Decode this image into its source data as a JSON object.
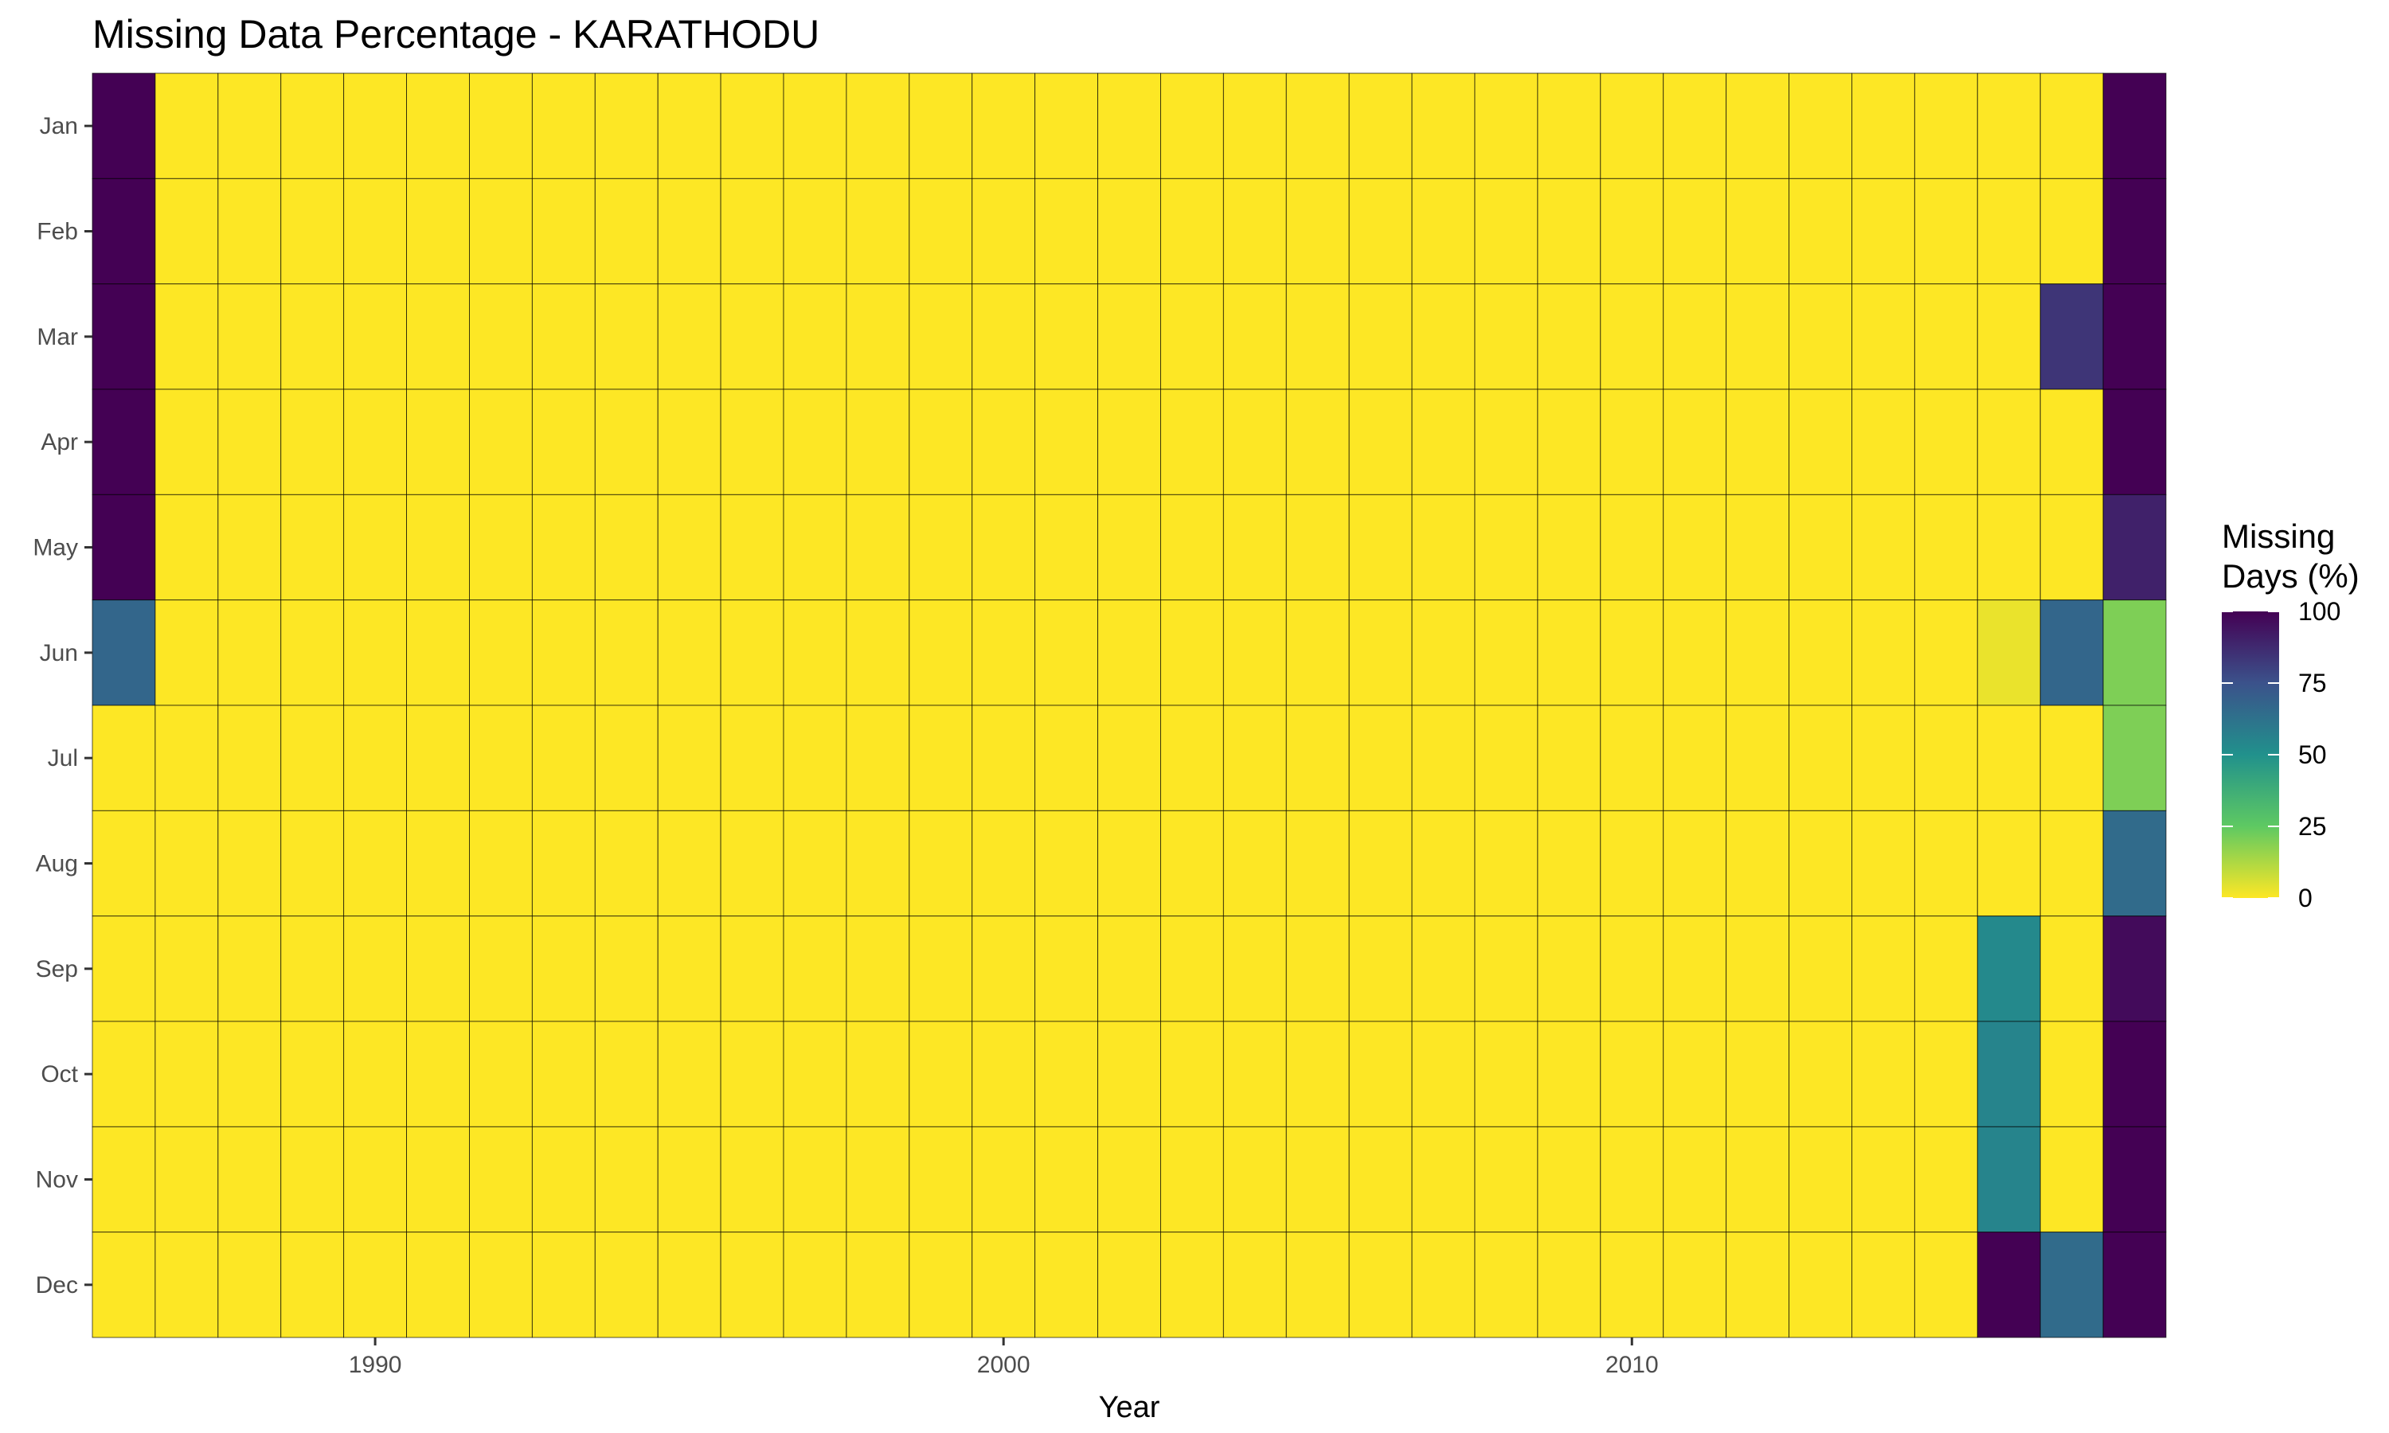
{
  "chart_data": {
    "type": "heatmap",
    "title": "Missing Data Percentage - KARATHODU",
    "xlabel": "Year",
    "ylabel": "",
    "x_years": [
      1986,
      1987,
      1988,
      1989,
      1990,
      1991,
      1992,
      1993,
      1994,
      1995,
      1996,
      1997,
      1998,
      1999,
      2000,
      2001,
      2002,
      2003,
      2004,
      2005,
      2006,
      2007,
      2008,
      2009,
      2010,
      2011,
      2012,
      2013,
      2014,
      2015,
      2016,
      2017,
      2018
    ],
    "x_ticks": [
      1990,
      2000,
      2010
    ],
    "x_tick_labels": [
      "1990",
      "2000",
      "2010"
    ],
    "y_categories": [
      "Jan",
      "Feb",
      "Mar",
      "Apr",
      "May",
      "Jun",
      "Jul",
      "Aug",
      "Sep",
      "Oct",
      "Nov",
      "Dec"
    ],
    "default_value": 0,
    "nonzero_cells": [
      {
        "year": 1986,
        "month": "Jan",
        "value": 100
      },
      {
        "year": 1986,
        "month": "Feb",
        "value": 100
      },
      {
        "year": 1986,
        "month": "Mar",
        "value": 100
      },
      {
        "year": 1986,
        "month": "Apr",
        "value": 100
      },
      {
        "year": 1986,
        "month": "May",
        "value": 100
      },
      {
        "year": 1986,
        "month": "Jun",
        "value": 67
      },
      {
        "year": 2016,
        "month": "Jun",
        "value": 3
      },
      {
        "year": 2016,
        "month": "Sep",
        "value": 53
      },
      {
        "year": 2016,
        "month": "Oct",
        "value": 55
      },
      {
        "year": 2016,
        "month": "Nov",
        "value": 55
      },
      {
        "year": 2016,
        "month": "Dec",
        "value": 100
      },
      {
        "year": 2017,
        "month": "Mar",
        "value": 84
      },
      {
        "year": 2017,
        "month": "Jun",
        "value": 67
      },
      {
        "year": 2017,
        "month": "Dec",
        "value": 65
      },
      {
        "year": 2018,
        "month": "Jan",
        "value": 100
      },
      {
        "year": 2018,
        "month": "Feb",
        "value": 100
      },
      {
        "year": 2018,
        "month": "Mar",
        "value": 100
      },
      {
        "year": 2018,
        "month": "Apr",
        "value": 100
      },
      {
        "year": 2018,
        "month": "May",
        "value": 90
      },
      {
        "year": 2018,
        "month": "Jun",
        "value": 20
      },
      {
        "year": 2018,
        "month": "Jul",
        "value": 20
      },
      {
        "year": 2018,
        "month": "Aug",
        "value": 65
      },
      {
        "year": 2018,
        "month": "Sep",
        "value": 97
      },
      {
        "year": 2018,
        "month": "Oct",
        "value": 100
      },
      {
        "year": 2018,
        "month": "Nov",
        "value": 100
      },
      {
        "year": 2018,
        "month": "Dec",
        "value": 100
      }
    ],
    "color_scale": {
      "name": "viridis",
      "reversed": true,
      "domain": [
        0,
        100
      ],
      "stops": [
        "#fde725",
        "#5ec962",
        "#21918c",
        "#3b528b",
        "#440154"
      ]
    },
    "legend": {
      "title_line1": "Missing",
      "title_line2": "Days (%)",
      "ticks": [
        100,
        75,
        50,
        25,
        0
      ],
      "tick_labels": [
        "100",
        "75",
        "50",
        "25",
        "0"
      ],
      "position": "right"
    },
    "grid": false
  }
}
